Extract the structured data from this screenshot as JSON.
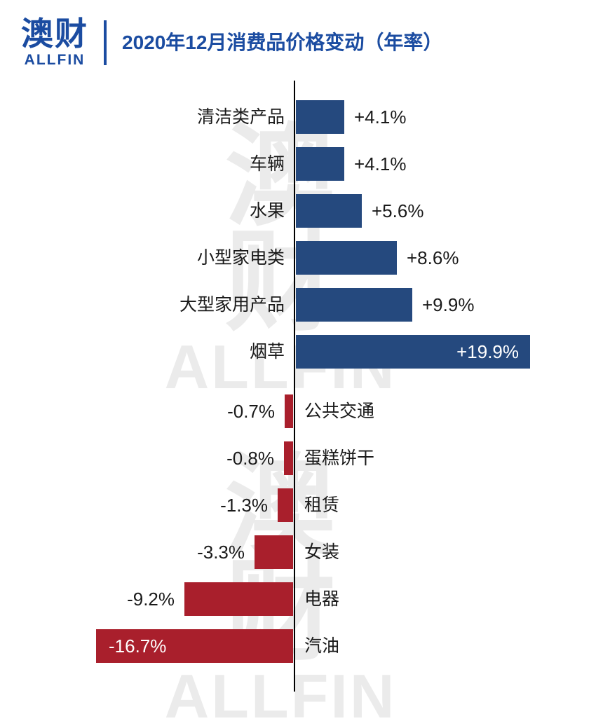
{
  "header": {
    "logo_cn": "澳财",
    "logo_en": "ALLFIN",
    "title": "2020年12月消费品价格变动（年率）",
    "brand_color": "#1b4ca1"
  },
  "watermark": {
    "cn_top": "澳",
    "cn_bottom": "财",
    "en": "ALLFIN"
  },
  "chart_data": {
    "type": "bar",
    "orientation": "horizontal",
    "diverging": true,
    "title": "2020年12月消费品价格变动（年率）",
    "unit": "%",
    "positive_color": "#25497e",
    "negative_color": "#a91f2c",
    "axis_color": "#000000",
    "label_color": "#1a1a1a",
    "inside_label_color": "#ffffff",
    "categories": [
      "清洁类产品",
      "车辆",
      "水果",
      "小型家电类",
      "大型家用产品",
      "烟草",
      "公共交通",
      "蛋糕饼干",
      "租赁",
      "女装",
      "电器",
      "汽油"
    ],
    "values": [
      4.1,
      4.1,
      5.6,
      8.6,
      9.9,
      19.9,
      -0.7,
      -0.8,
      -1.3,
      -3.3,
      -9.2,
      -16.7
    ],
    "value_labels": [
      "+4.1%",
      "+4.1%",
      "+5.6%",
      "+8.6%",
      "+9.9%",
      "+19.9%",
      "-0.7%",
      "-0.8%",
      "-1.3%",
      "-3.3%",
      "-9.2%",
      "-16.7%"
    ],
    "xlim": [
      -20,
      20
    ],
    "grid": false,
    "legend": false
  }
}
